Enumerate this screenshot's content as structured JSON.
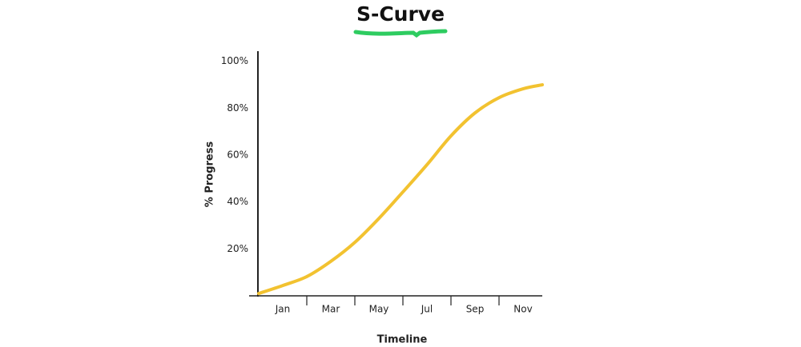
{
  "chart_data": {
    "type": "line",
    "title": "S-Curve",
    "x_label": "Timeline",
    "y_label": "% Progress",
    "x": [
      0,
      1,
      2,
      3,
      4,
      5,
      6,
      7,
      8,
      9,
      10,
      11,
      11.8
    ],
    "series": [
      {
        "color": "#f2c230",
        "values": [
          1,
          4.4,
          8.2,
          14.7,
          22.8,
          33,
          44.3,
          55.9,
          68.2,
          78,
          84.5,
          88.3,
          90
        ]
      }
    ],
    "xlim": [
      0,
      11.8
    ],
    "xticks": [
      {
        "value": 1,
        "label": "Jan"
      },
      {
        "value": 3,
        "label": "Mar"
      },
      {
        "value": 5,
        "label": "May"
      },
      {
        "value": 7,
        "label": "Jul"
      },
      {
        "value": 9,
        "label": "Sep"
      },
      {
        "value": 11,
        "label": "Nov"
      }
    ],
    "ylim": [
      0,
      104
    ],
    "yticks": [
      {
        "value": 20,
        "label": "20%"
      },
      {
        "value": 40,
        "label": "40%"
      },
      {
        "value": 60,
        "label": "60%"
      },
      {
        "value": 80,
        "label": "80%"
      },
      {
        "value": 100,
        "label": "100%"
      }
    ],
    "grid": false
  }
}
